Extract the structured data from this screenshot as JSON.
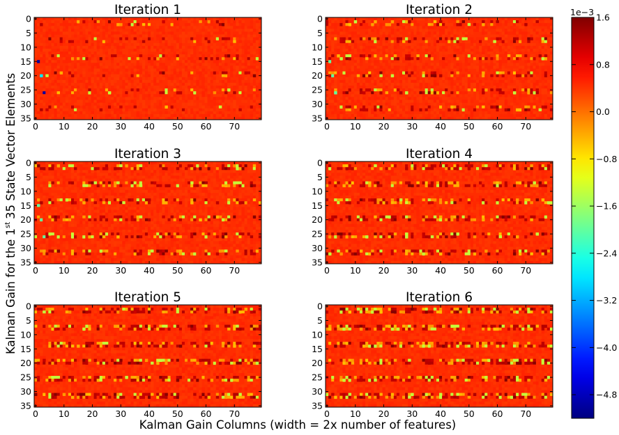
{
  "figure": {
    "ylabel_main": "Kalman Gain for the 1",
    "ylabel_sup": "st",
    "ylabel_end": "35 State Vector Elements",
    "xlabel": "Kalman Gain Columns (width = 2x number of features)"
  },
  "chart_data": {
    "type": "heatmap",
    "grid": false,
    "nx": 80,
    "ny": 36,
    "x_ticks": [
      0,
      10,
      20,
      30,
      40,
      50,
      60,
      70
    ],
    "y_ticks": [
      0,
      5,
      10,
      15,
      20,
      25,
      30,
      35
    ],
    "panels": [
      {
        "title": "Iteration 1",
        "activity": 0.25
      },
      {
        "title": "Iteration 2",
        "activity": 0.55
      },
      {
        "title": "Iteration 3",
        "activity": 0.7
      },
      {
        "title": "Iteration 4",
        "activity": 0.78
      },
      {
        "title": "Iteration 5",
        "activity": 0.92
      },
      {
        "title": "Iteration 6",
        "activity": 1.0
      }
    ],
    "active_rows": [
      1,
      2,
      7,
      8,
      13,
      14,
      19,
      20,
      25,
      26,
      31,
      32
    ],
    "colorbar": {
      "colormap": "jet",
      "range": [
        -5.2,
        1.6
      ],
      "exponent_label": "1e−3",
      "ticks": [
        "1.6",
        "0.8",
        "0.0",
        "−0.8",
        "−1.6",
        "−2.4",
        "−3.2",
        "−4.0",
        "−4.8"
      ],
      "tick_values": [
        1.6,
        0.8,
        0.0,
        -0.8,
        -1.6,
        -2.4,
        -3.2,
        -4.0,
        -4.8
      ]
    }
  }
}
